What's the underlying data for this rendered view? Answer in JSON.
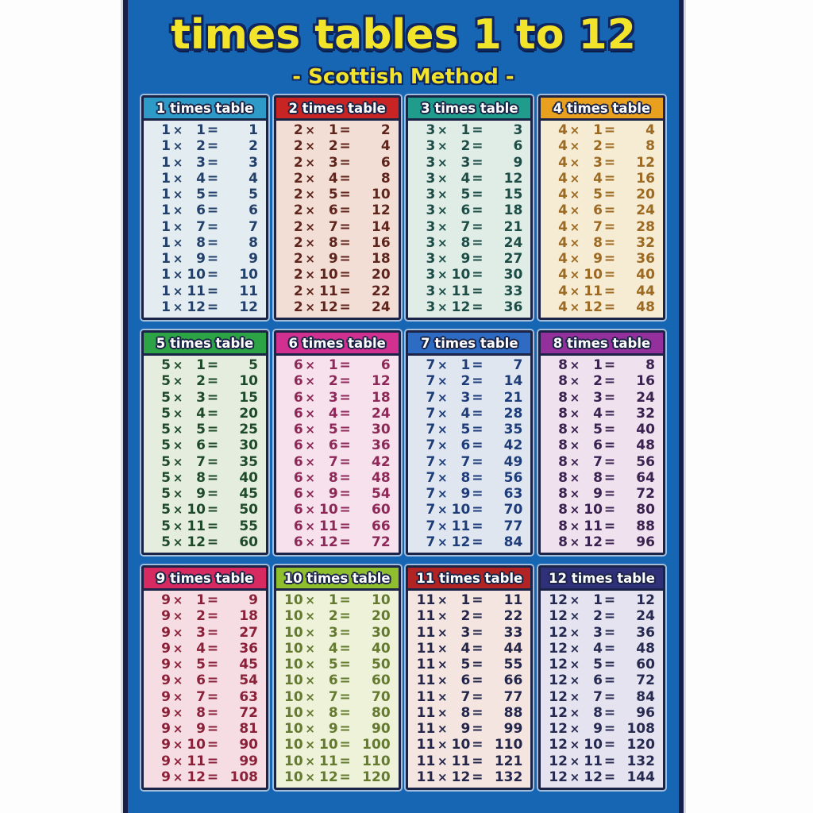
{
  "poster": {
    "title": "times tables 1 to 12",
    "subtitle": "- Scottish Method -",
    "title_color": "#f2e32b",
    "title_outline_color": "#10265e",
    "background_color": "#1766b4",
    "border_color": "#16204a"
  },
  "symbols": {
    "times": "×",
    "equals": "="
  },
  "multipliers": [
    1,
    2,
    3,
    4,
    5,
    6,
    7,
    8,
    9,
    10,
    11,
    12
  ],
  "tables": [
    {
      "number": 1,
      "title": "1 times table",
      "header_color": "#2e9ac8",
      "body_color": "#e2ecf1",
      "text_color": "#23406b",
      "products": [
        1,
        2,
        3,
        4,
        5,
        6,
        7,
        8,
        9,
        10,
        11,
        12
      ]
    },
    {
      "number": 2,
      "title": "2 times table",
      "header_color": "#c82424",
      "body_color": "#f3ded5",
      "text_color": "#5f241b",
      "products": [
        2,
        4,
        6,
        8,
        10,
        12,
        14,
        16,
        18,
        20,
        22,
        24
      ]
    },
    {
      "number": 3,
      "title": "3 times table",
      "header_color": "#1f9c8c",
      "body_color": "#e0ece6",
      "text_color": "#1d4c46",
      "products": [
        3,
        6,
        9,
        12,
        15,
        18,
        21,
        24,
        27,
        30,
        33,
        36
      ]
    },
    {
      "number": 4,
      "title": "4 times table",
      "header_color": "#e9a01e",
      "body_color": "#f6ecd3",
      "text_color": "#9c6a22",
      "products": [
        4,
        8,
        12,
        16,
        20,
        24,
        28,
        32,
        36,
        40,
        44,
        48
      ]
    },
    {
      "number": 5,
      "title": "5 times table",
      "header_color": "#2ca344",
      "body_color": "#e5eede",
      "text_color": "#1e4a2a",
      "products": [
        5,
        10,
        15,
        20,
        25,
        30,
        35,
        40,
        45,
        50,
        55,
        60
      ]
    },
    {
      "number": 6,
      "title": "6 times table",
      "header_color": "#d13090",
      "body_color": "#f6e1ec",
      "text_color": "#8e2858",
      "products": [
        6,
        12,
        18,
        24,
        30,
        36,
        42,
        48,
        54,
        60,
        66,
        72
      ]
    },
    {
      "number": 7,
      "title": "7 times table",
      "header_color": "#2e6cc4",
      "body_color": "#dfe6f0",
      "text_color": "#1e3c78",
      "products": [
        7,
        14,
        21,
        28,
        35,
        42,
        49,
        56,
        63,
        70,
        77,
        84
      ]
    },
    {
      "number": 8,
      "title": "8 times table",
      "header_color": "#94309c",
      "body_color": "#efe2ee",
      "text_color": "#3a2150",
      "products": [
        8,
        16,
        24,
        32,
        40,
        48,
        56,
        64,
        72,
        80,
        88,
        96
      ]
    },
    {
      "number": 9,
      "title": "9 times table",
      "header_color": "#d62a60",
      "body_color": "#f6dde3",
      "text_color": "#8a2138",
      "products": [
        9,
        18,
        27,
        36,
        45,
        54,
        63,
        72,
        81,
        90,
        99,
        108
      ]
    },
    {
      "number": 10,
      "title": "10 times table",
      "header_color": "#8fbf2e",
      "body_color": "#edf2d9",
      "text_color": "#647a2e",
      "products": [
        10,
        20,
        30,
        40,
        50,
        60,
        70,
        80,
        90,
        100,
        110,
        120
      ]
    },
    {
      "number": 11,
      "title": "11 times table",
      "header_color": "#b22424",
      "body_color": "#f4e5e1",
      "text_color": "#232648",
      "products": [
        11,
        22,
        33,
        44,
        55,
        66,
        77,
        88,
        99,
        110,
        121,
        132
      ]
    },
    {
      "number": 12,
      "title": "12 times table",
      "header_color": "#303078",
      "body_color": "#e5e3f0",
      "text_color": "#262a50",
      "products": [
        12,
        24,
        36,
        48,
        60,
        72,
        84,
        96,
        108,
        120,
        132,
        144
      ]
    }
  ]
}
